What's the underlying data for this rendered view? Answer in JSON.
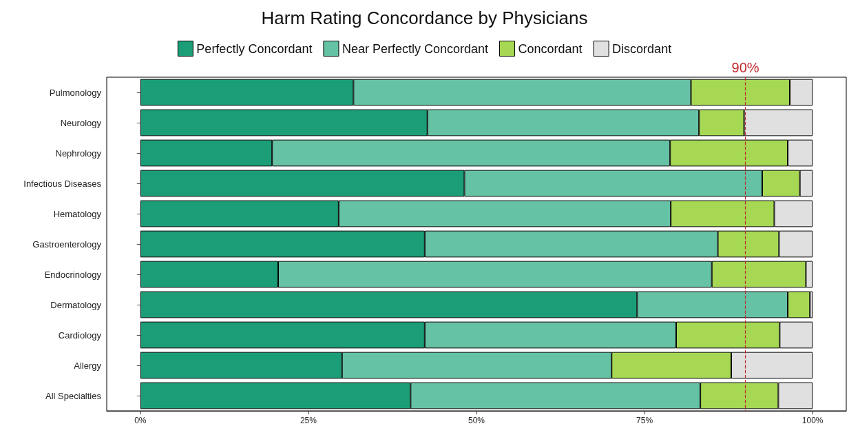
{
  "chart_data": {
    "type": "bar",
    "title": "Harm Rating Concordance by Physicians",
    "orientation": "horizontal",
    "stacked": true,
    "categories": [
      "Pulmonology",
      "Neurology",
      "Nephrology",
      "Infectious Diseases",
      "Hematology",
      "Gastroenterology",
      "Endocrinology",
      "Dermatology",
      "Cardiology",
      "Allergy",
      "All Specialties"
    ],
    "series": [
      {
        "name": "Perfectly Concordant",
        "color": "#1b9e77",
        "values": [
          31.7,
          42.7,
          19.6,
          48.2,
          29.5,
          42.3,
          20.5,
          73.9,
          42.3,
          30.0,
          40.2
        ]
      },
      {
        "name": "Near Perfectly Concordant",
        "color": "#66c2a5",
        "values": [
          50.2,
          40.4,
          59.2,
          44.3,
          49.4,
          43.6,
          64.5,
          22.4,
          37.4,
          40.1,
          43.1
        ]
      },
      {
        "name": "Concordant",
        "color": "#a6d854",
        "values": [
          14.7,
          6.7,
          17.5,
          5.6,
          15.4,
          9.1,
          14.0,
          3.3,
          15.4,
          17.8,
          11.6
        ]
      },
      {
        "name": "Discordant",
        "color": "#e0e0e0",
        "values": [
          3.4,
          10.2,
          3.7,
          1.9,
          5.7,
          5.0,
          1.0,
          0.4,
          4.9,
          12.1,
          5.1
        ]
      }
    ],
    "xlim": [
      -5,
      105
    ],
    "xticks": [
      {
        "value": 0,
        "label": "0%"
      },
      {
        "value": 25,
        "label": "25%"
      },
      {
        "value": 50,
        "label": "50%"
      },
      {
        "value": 75,
        "label": "75%"
      },
      {
        "value": 100,
        "label": "100%"
      }
    ],
    "ref_lines": [
      {
        "axis": "x",
        "value": 90,
        "label": "90%",
        "color": "#c0282d",
        "line_style": "dashed"
      }
    ],
    "grid": false,
    "legend": "top"
  }
}
